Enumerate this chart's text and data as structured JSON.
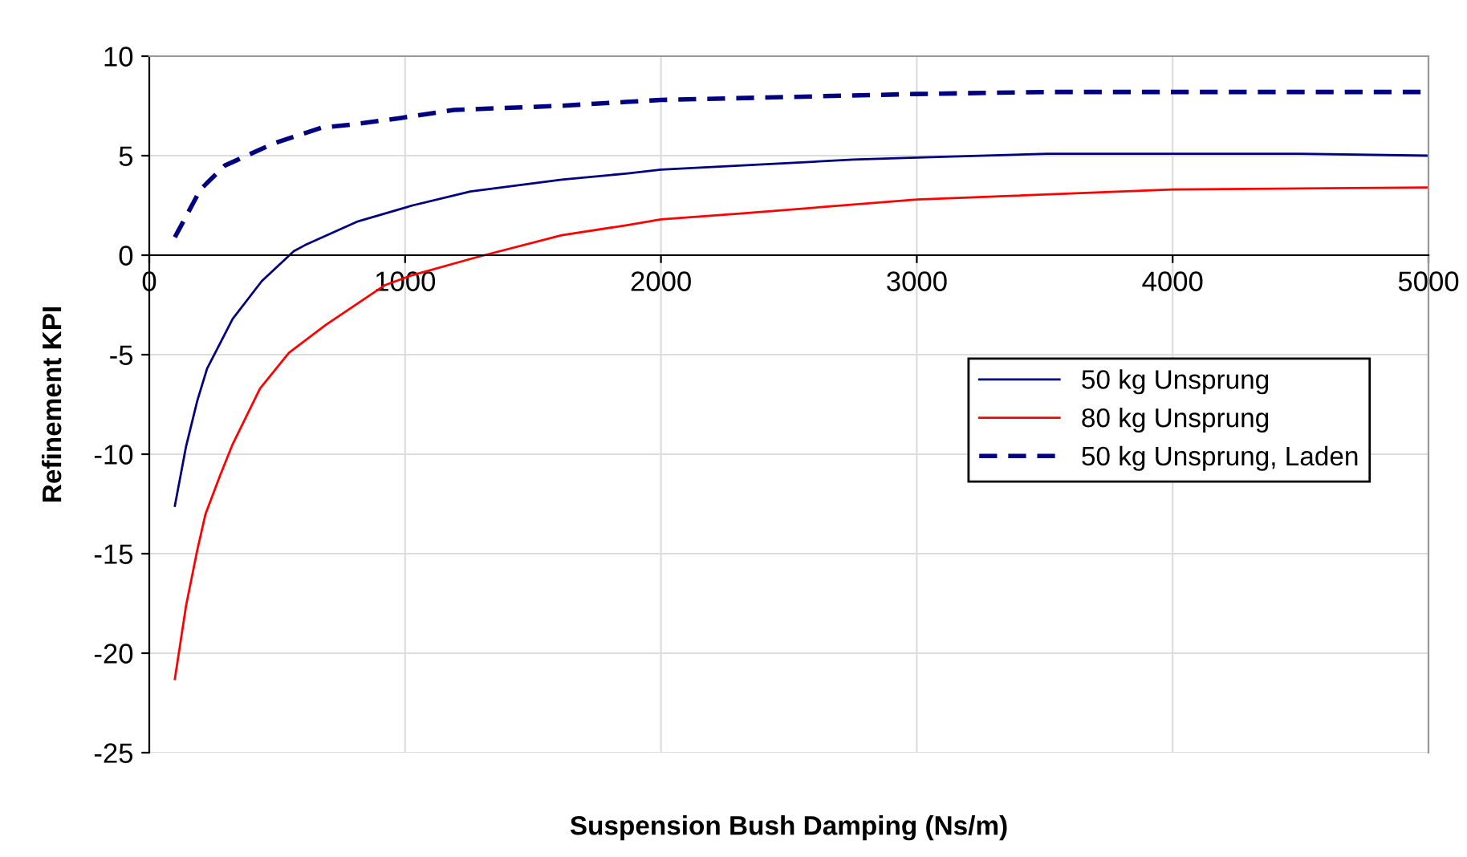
{
  "chart_data": {
    "type": "line",
    "xlabel": "Suspension Bush Damping (Ns/m)",
    "ylabel": "Refinement KPI",
    "xlim": [
      0,
      5000
    ],
    "xticks": [
      0,
      1000,
      2000,
      3000,
      4000,
      5000
    ],
    "ylim": [
      -25,
      10
    ],
    "yticks": [
      -25,
      -20,
      -15,
      -10,
      -5,
      0,
      5,
      10
    ],
    "grid": true,
    "legend": "right",
    "marker": "none",
    "series": [
      {
        "name": "50 kg Unsprung",
        "color": "#000080",
        "line_style": "solid",
        "x": [
          100,
          144,
          188,
          226,
          326,
          440,
          565,
          608,
          816,
          1029,
          1255,
          1612,
          1863,
          2000,
          2750,
          3000,
          3510,
          4500,
          5000
        ],
        "values": [
          -12.6,
          -9.6,
          -7.3,
          -5.7,
          -3.2,
          -1.3,
          0.2,
          0.5,
          1.7,
          2.5,
          3.2,
          3.8,
          4.1,
          4.3,
          4.8,
          4.9,
          5.1,
          5.1,
          5.0
        ]
      },
      {
        "name": "80 kg Unsprung",
        "color": "#ff0000",
        "line_style": "solid",
        "x": [
          100,
          144,
          188,
          220,
          276,
          326,
          433,
          546,
          690,
          922,
          1029,
          1280,
          1612,
          1863,
          2000,
          2320,
          3000,
          4000,
          5000
        ],
        "values": [
          -21.3,
          -17.6,
          -14.8,
          -13.0,
          -11.1,
          -9.5,
          -6.7,
          -4.9,
          -3.5,
          -1.5,
          -1.0,
          -0.1,
          1.0,
          1.5,
          1.8,
          2.1,
          2.8,
          3.3,
          3.4
        ]
      },
      {
        "name": "50 kg Unsprung, Laden",
        "color": "#000080",
        "line_style": "dashed",
        "x": [
          100,
          200,
          295,
          483,
          671,
          816,
          985,
          1192,
          1600,
          1863,
          2000,
          3000,
          3510,
          5000
        ],
        "values": [
          0.9,
          3.3,
          4.5,
          5.6,
          6.4,
          6.6,
          6.9,
          7.3,
          7.5,
          7.7,
          7.8,
          8.1,
          8.2,
          8.2
        ]
      }
    ]
  }
}
